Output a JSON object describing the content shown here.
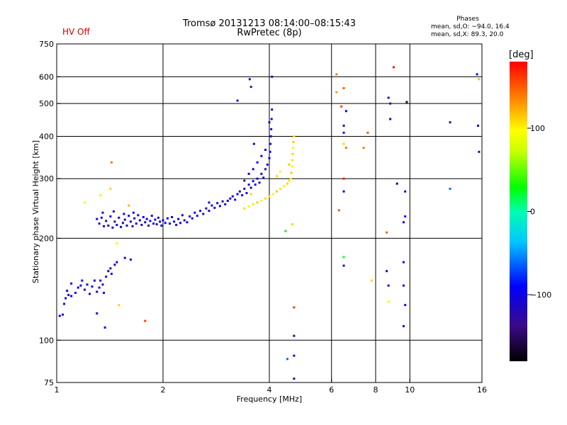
{
  "header": {
    "status": "HV Off",
    "status_color": "#d00000",
    "title_line1": "Tromsø 20131213 08:14:00–08:15:43",
    "title_line2": "RwPretec (8p)",
    "phases_title": "Phases",
    "phases_o": "mean, sd,O: −94.0, 16.4",
    "phases_x": "mean, sd,X:  89.3, 20.0"
  },
  "colorbar": {
    "unit": "[deg]",
    "ticks": [
      {
        "value": 100,
        "label": "100"
      },
      {
        "value": 0,
        "label": "0"
      },
      {
        "value": -100,
        "label": "−100"
      }
    ],
    "range": [
      -180,
      180
    ]
  },
  "chart_data": {
    "type": "scatter",
    "title": "Tromsø 20131213 08:14:00–08:15:43 RwPretec (8p)",
    "xlabel": "Frequency [MHz]",
    "ylabel": "Stationary phase Virtual Height [km]",
    "xscale": "log",
    "yscale": "log",
    "xlim": [
      1,
      16
    ],
    "ylim": [
      75,
      750
    ],
    "grid": true,
    "xticks": [
      {
        "value": 1,
        "label": "1"
      },
      {
        "value": 2,
        "label": "2"
      },
      {
        "value": 4,
        "label": "4"
      },
      {
        "value": 6,
        "label": "6"
      },
      {
        "value": 8,
        "label": "8"
      },
      {
        "value": 10,
        "label": "10"
      },
      {
        "value": 16,
        "label": "16"
      }
    ],
    "xgrid": [
      2,
      4,
      6,
      8,
      10
    ],
    "yticks": [
      {
        "value": 75,
        "label": "75"
      },
      {
        "value": 100,
        "label": "100"
      },
      {
        "value": 200,
        "label": "200"
      },
      {
        "value": 300,
        "label": "300"
      },
      {
        "value": 400,
        "label": "400"
      },
      {
        "value": 500,
        "label": "500"
      },
      {
        "value": 600,
        "label": "600"
      },
      {
        "value": 750,
        "label": "750"
      }
    ],
    "ygrid": [
      100,
      200,
      300,
      400,
      500,
      600
    ],
    "points": [
      [
        1.02,
        118,
        -95
      ],
      [
        1.04,
        119,
        -95
      ],
      [
        1.05,
        128,
        -110
      ],
      [
        1.06,
        133,
        -105
      ],
      [
        1.07,
        140,
        -100
      ],
      [
        1.08,
        136,
        -110
      ],
      [
        1.1,
        135,
        -100
      ],
      [
        1.13,
        138,
        -95
      ],
      [
        1.15,
        143,
        -100
      ],
      [
        1.17,
        145,
        -110
      ],
      [
        1.2,
        141,
        -100
      ],
      [
        1.22,
        146,
        -95
      ],
      [
        1.24,
        137,
        -110
      ],
      [
        1.26,
        144,
        -105
      ],
      [
        1.28,
        150,
        -100
      ],
      [
        1.3,
        139,
        -95
      ],
      [
        1.32,
        143,
        -110
      ],
      [
        1.33,
        150,
        -100
      ],
      [
        1.35,
        146,
        -100
      ],
      [
        1.36,
        138,
        -95
      ],
      [
        1.38,
        154,
        -110
      ],
      [
        1.4,
        160,
        -105
      ],
      [
        1.42,
        163,
        -100
      ],
      [
        1.43,
        157,
        -110
      ],
      [
        1.46,
        167,
        -100
      ],
      [
        1.48,
        170,
        -100
      ],
      [
        1.56,
        175,
        -105
      ],
      [
        1.62,
        173,
        -100
      ],
      [
        1.3,
        120,
        -110
      ],
      [
        1.37,
        109,
        -100
      ],
      [
        1.1,
        147,
        -95
      ],
      [
        1.18,
        150,
        -105
      ],
      [
        1.3,
        228,
        -100
      ],
      [
        1.32,
        221,
        -110
      ],
      [
        1.34,
        230,
        -105
      ],
      [
        1.36,
        217,
        -95
      ],
      [
        1.38,
        225,
        -110
      ],
      [
        1.4,
        218,
        -100
      ],
      [
        1.42,
        232,
        -100
      ],
      [
        1.44,
        215,
        -105
      ],
      [
        1.46,
        224,
        -110
      ],
      [
        1.48,
        219,
        -100
      ],
      [
        1.5,
        230,
        -95
      ],
      [
        1.52,
        216,
        -100
      ],
      [
        1.54,
        222,
        -110
      ],
      [
        1.56,
        227,
        -100
      ],
      [
        1.58,
        218,
        -105
      ],
      [
        1.6,
        233,
        -95
      ],
      [
        1.62,
        224,
        -100
      ],
      [
        1.64,
        217,
        -110
      ],
      [
        1.66,
        229,
        -100
      ],
      [
        1.68,
        221,
        -105
      ],
      [
        1.7,
        234,
        -100
      ],
      [
        1.72,
        226,
        -95
      ],
      [
        1.74,
        219,
        -110
      ],
      [
        1.76,
        231,
        -100
      ],
      [
        1.78,
        223,
        -100
      ],
      [
        1.8,
        228,
        -105
      ],
      [
        1.82,
        218,
        -110
      ],
      [
        1.84,
        225,
        -100
      ],
      [
        1.86,
        233,
        -95
      ],
      [
        1.88,
        221,
        -100
      ],
      [
        1.9,
        227,
        -110
      ],
      [
        1.92,
        220,
        -100
      ],
      [
        1.94,
        230,
        -105
      ],
      [
        1.96,
        224,
        -100
      ],
      [
        1.98,
        218,
        -95
      ],
      [
        2.0,
        226,
        -110
      ],
      [
        2.03,
        222,
        -100
      ],
      [
        2.06,
        229,
        -100
      ],
      [
        2.09,
        221,
        -105
      ],
      [
        2.12,
        231,
        -110
      ],
      [
        2.15,
        224,
        -100
      ],
      [
        2.18,
        219,
        -95
      ],
      [
        2.21,
        228,
        -100
      ],
      [
        2.24,
        222,
        -110
      ],
      [
        2.27,
        234,
        -100
      ],
      [
        2.3,
        226,
        -105
      ],
      [
        2.34,
        223,
        -100
      ],
      [
        2.38,
        232,
        -95
      ],
      [
        2.42,
        229,
        -110
      ],
      [
        2.46,
        238,
        -100
      ],
      [
        2.5,
        233,
        -100
      ],
      [
        2.55,
        241,
        -105
      ],
      [
        2.6,
        236,
        -100
      ],
      [
        2.65,
        245,
        -110
      ],
      [
        2.7,
        241,
        -100
      ],
      [
        2.75,
        250,
        -95
      ],
      [
        2.8,
        246,
        -100
      ],
      [
        2.85,
        254,
        -110
      ],
      [
        2.9,
        249,
        -100
      ],
      [
        2.95,
        257,
        -105
      ],
      [
        3.0,
        252,
        -100
      ],
      [
        1.35,
        238,
        -100
      ],
      [
        1.45,
        240,
        -110
      ],
      [
        1.55,
        236,
        -100
      ],
      [
        1.65,
        238,
        -95
      ],
      [
        2.7,
        255,
        -110
      ],
      [
        3.05,
        258,
        -100
      ],
      [
        3.1,
        262,
        -110
      ],
      [
        3.15,
        266,
        -95
      ],
      [
        3.2,
        260,
        -105
      ],
      [
        3.25,
        270,
        -100
      ],
      [
        3.3,
        275,
        -110
      ],
      [
        3.35,
        268,
        -100
      ],
      [
        3.4,
        280,
        -95
      ],
      [
        3.45,
        272,
        -110
      ],
      [
        3.5,
        288,
        -100
      ],
      [
        3.55,
        282,
        -105
      ],
      [
        3.6,
        295,
        -100
      ],
      [
        3.65,
        288,
        -95
      ],
      [
        3.7,
        300,
        -110
      ],
      [
        3.75,
        292,
        -100
      ],
      [
        3.8,
        310,
        -100
      ],
      [
        3.85,
        302,
        -105
      ],
      [
        3.9,
        320,
        -110
      ],
      [
        3.95,
        330,
        -100
      ],
      [
        4.0,
        345,
        -95
      ],
      [
        4.02,
        360,
        -100
      ],
      [
        4.03,
        380,
        -110
      ],
      [
        4.04,
        400,
        -100
      ],
      [
        4.05,
        420,
        -105
      ],
      [
        4.06,
        450,
        -100
      ],
      [
        4.07,
        480,
        -110
      ],
      [
        3.6,
        320,
        -100
      ],
      [
        3.7,
        335,
        -95
      ],
      [
        3.8,
        350,
        -110
      ],
      [
        3.9,
        365,
        -100
      ],
      [
        3.5,
        310,
        -100
      ],
      [
        3.4,
        296,
        -105
      ],
      [
        4.07,
        600,
        -120
      ],
      [
        3.62,
        380,
        -105
      ],
      [
        3.52,
        590,
        -110
      ],
      [
        3.55,
        560,
        -130
      ],
      [
        4.0,
        440,
        -130
      ],
      [
        3.25,
        510,
        -120
      ],
      [
        3.4,
        245,
        110
      ],
      [
        3.5,
        248,
        100
      ],
      [
        3.6,
        252,
        105
      ],
      [
        3.7,
        255,
        115
      ],
      [
        3.8,
        258,
        100
      ],
      [
        3.9,
        262,
        110
      ],
      [
        4.0,
        266,
        105
      ],
      [
        4.1,
        270,
        100
      ],
      [
        4.2,
        275,
        115
      ],
      [
        4.3,
        280,
        105
      ],
      [
        4.4,
        285,
        100
      ],
      [
        4.5,
        290,
        110
      ],
      [
        4.55,
        296,
        105
      ],
      [
        4.6,
        300,
        100
      ],
      [
        4.62,
        312,
        115
      ],
      [
        4.64,
        326,
        100
      ],
      [
        4.65,
        340,
        105
      ],
      [
        4.66,
        355,
        110
      ],
      [
        4.67,
        370,
        100
      ],
      [
        4.68,
        385,
        115
      ],
      [
        4.7,
        400,
        105
      ],
      [
        4.2,
        305,
        110
      ],
      [
        4.3,
        315,
        100
      ],
      [
        4.55,
        330,
        115
      ],
      [
        3.55,
        270,
        110
      ],
      [
        4.65,
        220,
        110
      ],
      [
        4.45,
        210,
        25
      ],
      [
        6.2,
        610,
        140
      ],
      [
        6.2,
        540,
        130
      ],
      [
        6.5,
        555,
        150
      ],
      [
        6.4,
        490,
        160
      ],
      [
        6.6,
        475,
        -90
      ],
      [
        6.5,
        430,
        -140
      ],
      [
        6.5,
        410,
        -100
      ],
      [
        6.5,
        380,
        110
      ],
      [
        6.6,
        370,
        140
      ],
      [
        6.5,
        300,
        170
      ],
      [
        6.5,
        275,
        -100
      ],
      [
        6.3,
        242,
        150
      ],
      [
        6.5,
        176,
        20
      ],
      [
        6.5,
        166,
        -110
      ],
      [
        7.4,
        370,
        140
      ],
      [
        7.6,
        410,
        150
      ],
      [
        7.8,
        150,
        110
      ],
      [
        9.0,
        640,
        170
      ],
      [
        8.7,
        520,
        -110
      ],
      [
        8.8,
        500,
        -130
      ],
      [
        8.8,
        450,
        -90
      ],
      [
        9.8,
        505,
        -160
      ],
      [
        9.2,
        290,
        -150
      ],
      [
        9.7,
        275,
        -95
      ],
      [
        9.7,
        232,
        -95
      ],
      [
        9.6,
        223,
        -100
      ],
      [
        8.6,
        208,
        150
      ],
      [
        9.6,
        170,
        -100
      ],
      [
        8.6,
        160,
        -110
      ],
      [
        8.7,
        145,
        -100
      ],
      [
        9.6,
        145,
        -100
      ],
      [
        8.7,
        130,
        90
      ],
      [
        9.7,
        127,
        -100
      ],
      [
        9.6,
        110,
        -95
      ],
      [
        4.7,
        125,
        160
      ],
      [
        4.7,
        103,
        -110
      ],
      [
        4.7,
        90,
        -110
      ],
      [
        4.5,
        88,
        -60
      ],
      [
        4.7,
        77,
        -110
      ],
      [
        13.0,
        440,
        -130
      ],
      [
        15.5,
        610,
        -100
      ],
      [
        15.7,
        590,
        120
      ],
      [
        15.6,
        430,
        -100
      ],
      [
        15.7,
        360,
        -120
      ],
      [
        13.0,
        280,
        -60
      ],
      [
        1.43,
        335,
        140
      ],
      [
        1.42,
        280,
        110
      ],
      [
        1.33,
        268,
        80
      ],
      [
        1.2,
        255,
        100
      ],
      [
        1.48,
        193,
        90
      ],
      [
        1.5,
        127,
        110
      ],
      [
        1.78,
        114,
        160
      ],
      [
        1.6,
        250,
        120
      ]
    ]
  }
}
